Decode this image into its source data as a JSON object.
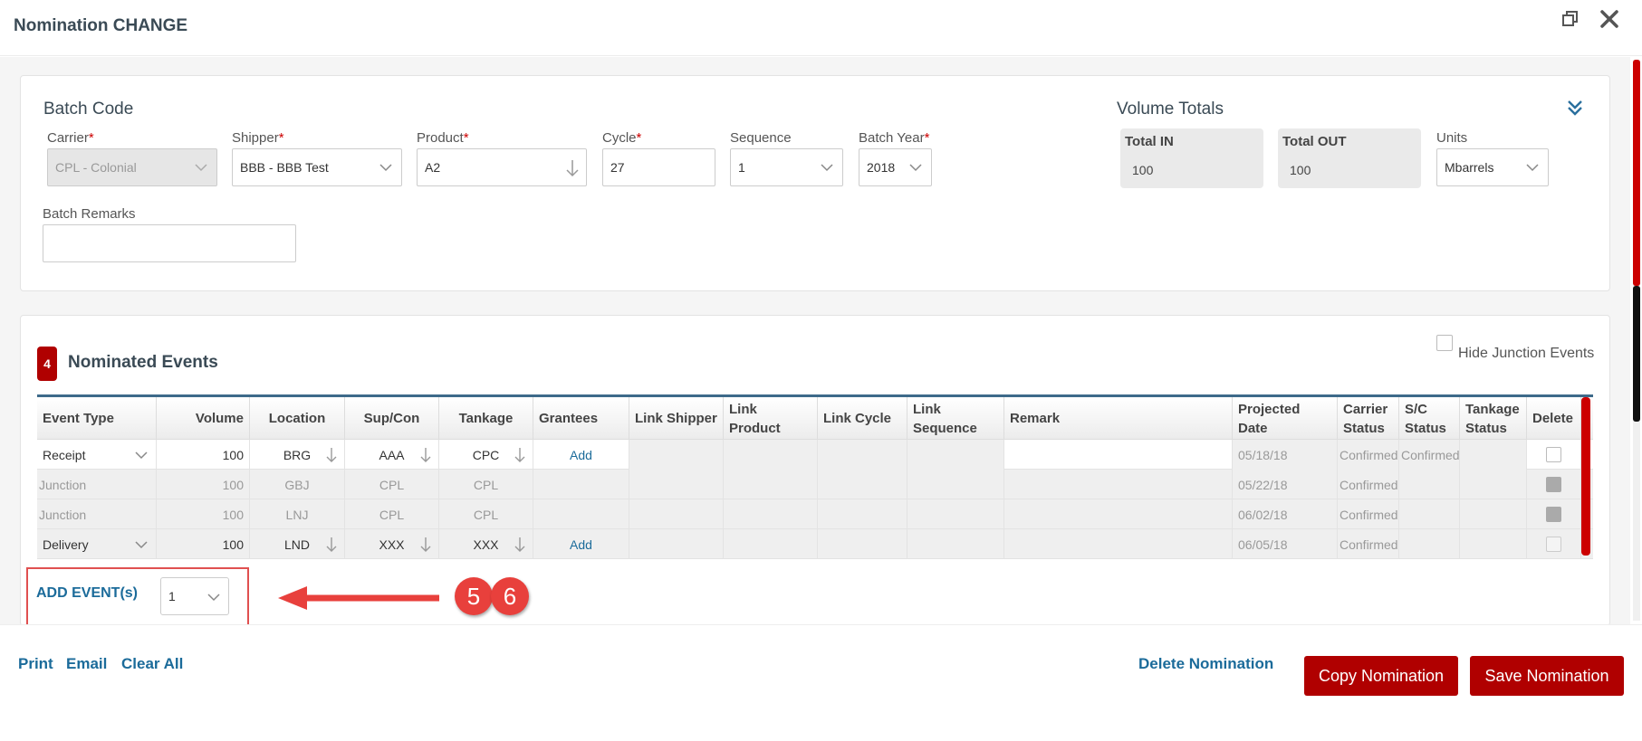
{
  "window": {
    "title": "Nomination CHANGE"
  },
  "batch": {
    "section_title": "Batch Code",
    "carrier": {
      "label": "Carrier",
      "value": "CPL - Colonial"
    },
    "shipper": {
      "label": "Shipper",
      "value": "BBB - BBB Test"
    },
    "product": {
      "label": "Product",
      "value": "A2"
    },
    "cycle": {
      "label": "Cycle",
      "value": "27"
    },
    "sequence": {
      "label": "Sequence",
      "value": "1"
    },
    "batch_year": {
      "label": "Batch Year",
      "value": "2018"
    },
    "remarks": {
      "label": "Batch Remarks",
      "value": ""
    },
    "required_mark": "*"
  },
  "volume": {
    "section_title": "Volume Totals",
    "total_in": {
      "label": "Total IN",
      "value": "100"
    },
    "total_out": {
      "label": "Total OUT",
      "value": "100"
    },
    "units": {
      "label": "Units",
      "value": "Mbarrels"
    }
  },
  "events": {
    "count_badge": "4",
    "section_title": "Nominated Events",
    "hide_junction_label": "Hide Junction Events",
    "columns": [
      "Event Type",
      "Volume",
      "Location",
      "Sup/Con",
      "Tankage",
      "Grantees",
      "Link Shipper",
      "Link Product",
      "Link Cycle",
      "Link Sequence",
      "Remark",
      "Projected Date",
      "Carrier Status",
      "S/C Status",
      "Tankage Status",
      "Delete"
    ],
    "rows": [
      {
        "event_type": "Receipt",
        "volume": "100",
        "location": "BRG",
        "supcon": "AAA",
        "tankage": "CPC",
        "grantees": "Add",
        "projected_date": "05/18/18",
        "carrier_status": "Confirmed",
        "sc_status": "Confirmed"
      },
      {
        "event_type": "Junction",
        "volume": "100",
        "location": "GBJ",
        "supcon": "CPL",
        "tankage": "CPL",
        "grantees": "",
        "projected_date": "05/22/18",
        "carrier_status": "Confirmed",
        "sc_status": ""
      },
      {
        "event_type": "Junction",
        "volume": "100",
        "location": "LNJ",
        "supcon": "CPL",
        "tankage": "CPL",
        "grantees": "",
        "projected_date": "06/02/18",
        "carrier_status": "Confirmed",
        "sc_status": ""
      },
      {
        "event_type": "Delivery",
        "volume": "100",
        "location": "LND",
        "supcon": "XXX",
        "tankage": "XXX",
        "grantees": "Add",
        "projected_date": "06/05/18",
        "carrier_status": "Confirmed",
        "sc_status": ""
      }
    ],
    "add_events_label": "ADD EVENT(s)",
    "add_events_count": "1"
  },
  "callouts": [
    "5",
    "6"
  ],
  "footer": {
    "print": "Print",
    "email": "Email",
    "clear_all": "Clear All",
    "delete": "Delete Nomination",
    "copy": "Copy Nomination",
    "save": "Save Nomination"
  },
  "colors": {
    "accent": "#b00000",
    "link": "#1b6b9a",
    "header_rule": "#3d6a8a",
    "callout": "#e8403c"
  }
}
